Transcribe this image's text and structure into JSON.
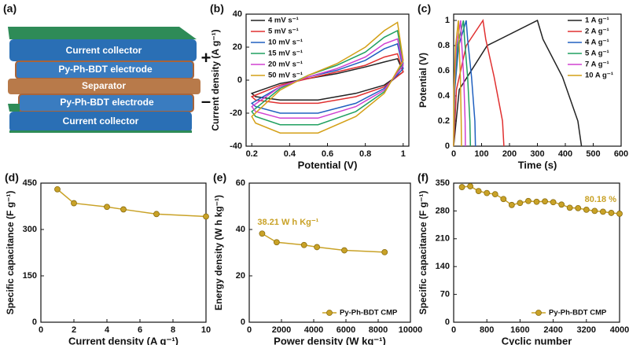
{
  "diagram": {
    "panel": "(a)",
    "layers": [
      "Current collector",
      "Py-Ph-BDT electrode",
      "Separator",
      "Py-Ph-BDT electrode",
      "Current collector"
    ],
    "signs": [
      "+",
      "–"
    ]
  },
  "chart_data": [
    {
      "type": "line",
      "panel": "(b)",
      "x_label": "Potential (V)",
      "y_label": "Current density (A g⁻¹)",
      "x": [
        0.2,
        0.35,
        0.5,
        0.65,
        0.8,
        0.9,
        0.97,
        1.0,
        0.9,
        0.75,
        0.55,
        0.35,
        0.22
      ],
      "closed": true,
      "legend": "upper left",
      "series": [
        {
          "name": "4 mV s⁻¹",
          "color": "#222222",
          "values": [
            -8,
            -2,
            1,
            4,
            8,
            11,
            13,
            5,
            -3,
            -8,
            -12,
            -12,
            -10
          ]
        },
        {
          "name": "5 mV s⁻¹",
          "color": "#e03030",
          "values": [
            -10,
            -3,
            1,
            5,
            9,
            14,
            16,
            5,
            -4,
            -10,
            -14,
            -14,
            -12
          ]
        },
        {
          "name": "10 mV s⁻¹",
          "color": "#2060c0",
          "values": [
            -14,
            -4,
            2,
            6,
            12,
            19,
            22,
            7,
            -5,
            -14,
            -20,
            -20,
            -16
          ]
        },
        {
          "name": "15 mV s⁻¹",
          "color": "#20a060",
          "values": [
            -19,
            -5,
            3,
            9,
            17,
            26,
            30,
            10,
            -7,
            -19,
            -27,
            -27,
            -22
          ]
        },
        {
          "name": "20 mV s⁻¹",
          "color": "#d040d0",
          "values": [
            -16,
            -4,
            2,
            7,
            14,
            22,
            25,
            9,
            -6,
            -16,
            -23,
            -23,
            -19
          ]
        },
        {
          "name": "50 mV s⁻¹",
          "color": "#d4a017",
          "values": [
            -22,
            -6,
            3,
            10,
            20,
            30,
            35,
            12,
            -8,
            -22,
            -32,
            -32,
            -26
          ]
        }
      ],
      "xlim": [
        0.17,
        1.03
      ],
      "xticks": [
        0.2,
        0.4,
        0.6,
        0.8,
        1
      ],
      "ylim": [
        -40,
        40
      ],
      "yticks": [
        -40,
        -20,
        0,
        20,
        40
      ]
    },
    {
      "type": "line",
      "panel": "(c)",
      "x_label": "Time (s)",
      "y_label": "Potential (V)",
      "legend": "upper right",
      "series": [
        {
          "name": "1 A g⁻¹",
          "color": "#222222",
          "x": [
            0,
            20,
            120,
            300,
            320,
            390,
            445,
            458
          ],
          "values": [
            0,
            0.45,
            0.8,
            1,
            0.85,
            0.55,
            0.2,
            0
          ]
        },
        {
          "name": "2 A g⁻¹",
          "color": "#e03030",
          "x": [
            0,
            10,
            45,
            105,
            115,
            145,
            175,
            180
          ],
          "values": [
            0,
            0.45,
            0.8,
            1,
            0.85,
            0.55,
            0.2,
            0
          ]
        },
        {
          "name": "4 A g⁻¹",
          "color": "#2060c0",
          "x": [
            0,
            4,
            18,
            45,
            50,
            64,
            76,
            78
          ],
          "values": [
            0,
            0.45,
            0.8,
            1,
            0.85,
            0.55,
            0.2,
            0
          ]
        },
        {
          "name": "5 A g⁻¹",
          "color": "#20a060",
          "x": [
            0,
            3,
            14,
            35,
            39,
            50,
            58,
            60
          ],
          "values": [
            0,
            0.45,
            0.8,
            1,
            0.85,
            0.55,
            0.2,
            0
          ]
        },
        {
          "name": "7 A g⁻¹",
          "color": "#d040d0",
          "x": [
            0,
            2,
            10,
            25,
            28,
            36,
            41,
            42
          ],
          "values": [
            0,
            0.45,
            0.8,
            1,
            0.85,
            0.55,
            0.2,
            0
          ]
        },
        {
          "name": "10 A g⁻¹",
          "color": "#d4a017",
          "x": [
            0,
            1,
            7,
            17,
            19,
            24,
            27,
            28
          ],
          "values": [
            0,
            0.45,
            0.8,
            1,
            0.85,
            0.55,
            0.2,
            0
          ]
        }
      ],
      "xlim": [
        0,
        600
      ],
      "xticks": [
        0,
        100,
        200,
        300,
        400,
        500,
        600
      ],
      "ylim": [
        0,
        1.05
      ],
      "yticks": [
        0,
        0.2,
        0.4,
        0.6,
        0.8,
        1
      ]
    },
    {
      "type": "line",
      "panel": "(d)",
      "x_label": "Current density (A g⁻¹)",
      "y_label": "Specific capacitance (F g⁻¹)",
      "markers": true,
      "color": "#c9a227",
      "x": [
        1,
        2,
        4,
        5,
        7,
        10
      ],
      "values": [
        430,
        385,
        373,
        365,
        350,
        342
      ],
      "xlim": [
        0,
        10
      ],
      "xticks": [
        0,
        2,
        4,
        6,
        8,
        10
      ],
      "ylim": [
        0,
        450
      ],
      "yticks": [
        0,
        150,
        300,
        450
      ]
    },
    {
      "type": "line",
      "panel": "(e)",
      "x_label": "Power density (W kg⁻¹)",
      "y_label": "Energy density (W h kg⁻¹)",
      "markers": true,
      "legend": "lower right",
      "annotation": "38.21 W h Kg⁻¹",
      "series": [
        {
          "name": "Py-Ph-BDT CMP",
          "color": "#c9a227",
          "x": [
            800,
            1700,
            3400,
            4200,
            5900,
            8400
          ],
          "values": [
            38.21,
            34.5,
            33.3,
            32.4,
            31,
            30.2
          ]
        }
      ],
      "xlim": [
        0,
        10000
      ],
      "xticks": [
        0,
        2000,
        4000,
        6000,
        8000,
        10000
      ],
      "ylim": [
        0,
        60
      ],
      "yticks": [
        0,
        20,
        40,
        60
      ]
    },
    {
      "type": "line",
      "panel": "(f)",
      "x_label": "Cyclic number",
      "y_label": "Specific capacitance (F g⁻¹)",
      "markers": true,
      "legend": "lower right",
      "annotation": "80.18 %",
      "series": [
        {
          "name": "Py-Ph-BDT CMP",
          "color": "#c9a227",
          "x": [
            200,
            400,
            600,
            800,
            1000,
            1200,
            1400,
            1600,
            1800,
            2000,
            2200,
            2400,
            2600,
            2800,
            3000,
            3200,
            3400,
            3600,
            3800,
            4000
          ],
          "values": [
            340,
            342,
            330,
            325,
            322,
            310,
            295,
            300,
            305,
            303,
            304,
            302,
            296,
            288,
            287,
            283,
            280,
            278,
            275,
            273
          ]
        }
      ],
      "xlim": [
        0,
        4000
      ],
      "xticks": [
        0,
        800,
        1600,
        2400,
        3200,
        4000
      ],
      "ylim": [
        0,
        350
      ],
      "yticks": [
        0,
        70,
        140,
        210,
        280,
        350
      ]
    }
  ]
}
